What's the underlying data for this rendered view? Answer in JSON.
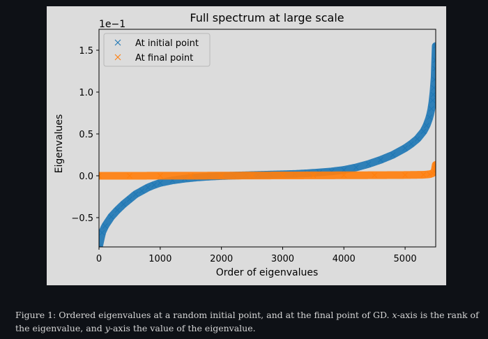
{
  "chart_data": {
    "type": "scatter",
    "title": "Full spectrum at large scale",
    "xlabel": "Order of eigenvalues",
    "ylabel": "Eigenvalues",
    "y_scale_label": "1e−1",
    "xlim": [
      0,
      5500
    ],
    "ylim": [
      -0.85,
      1.75
    ],
    "x_ticks": [
      0,
      1000,
      2000,
      3000,
      4000,
      5000
    ],
    "x_tick_labels": [
      "0",
      "1000",
      "2000",
      "3000",
      "4000",
      "5000"
    ],
    "y_ticks": [
      -0.5,
      0.0,
      0.5,
      1.0,
      1.5
    ],
    "y_tick_labels": [
      "−0.5",
      "0.0",
      "0.5",
      "1.0",
      "1.5"
    ],
    "grid": false,
    "legend_position": "top-left",
    "marker": "x",
    "series": [
      {
        "name": "At initial point",
        "color": "#1f77b4",
        "x": [
          0,
          50,
          100,
          200,
          300,
          400,
          500,
          600,
          700,
          800,
          900,
          1000,
          1200,
          1400,
          1600,
          1800,
          2000,
          2200,
          2400,
          2600,
          2800,
          3000,
          3200,
          3400,
          3600,
          3800,
          4000,
          4200,
          4400,
          4600,
          4800,
          5000,
          5100,
          5200,
          5300,
          5350,
          5400,
          5430,
          5450,
          5460,
          5470,
          5480,
          5490,
          5496,
          5500
        ],
        "y": [
          -0.85,
          -0.68,
          -0.6,
          -0.49,
          -0.41,
          -0.34,
          -0.28,
          -0.22,
          -0.18,
          -0.14,
          -0.11,
          -0.085,
          -0.055,
          -0.035,
          -0.02,
          -0.01,
          -0.003,
          0.002,
          0.006,
          0.01,
          0.014,
          0.018,
          0.022,
          0.03,
          0.04,
          0.052,
          0.07,
          0.1,
          0.14,
          0.19,
          0.25,
          0.33,
          0.38,
          0.44,
          0.53,
          0.6,
          0.7,
          0.8,
          0.9,
          0.97,
          1.05,
          1.15,
          1.28,
          1.38,
          1.55
        ]
      },
      {
        "name": "At final point",
        "color": "#ff7f0e",
        "x": [
          0,
          500,
          1000,
          1500,
          2000,
          2500,
          3000,
          3500,
          4000,
          4500,
          5000,
          5300,
          5400,
          5450,
          5480,
          5490,
          5495,
          5500
        ],
        "y": [
          0.0,
          0.0,
          0.001,
          0.001,
          0.002,
          0.003,
          0.004,
          0.005,
          0.006,
          0.007,
          0.009,
          0.012,
          0.018,
          0.03,
          0.05,
          0.08,
          0.11,
          0.13
        ]
      }
    ]
  },
  "caption": {
    "prefix": "Figure 1: Ordered eigenvalues at a random initial point, and at the final point of GD. ",
    "x_var": "x",
    "middle": "-axis is the rank of the eigenvalue, and ",
    "y_var": "y",
    "suffix": "-axis the value of the eigenvalue."
  }
}
